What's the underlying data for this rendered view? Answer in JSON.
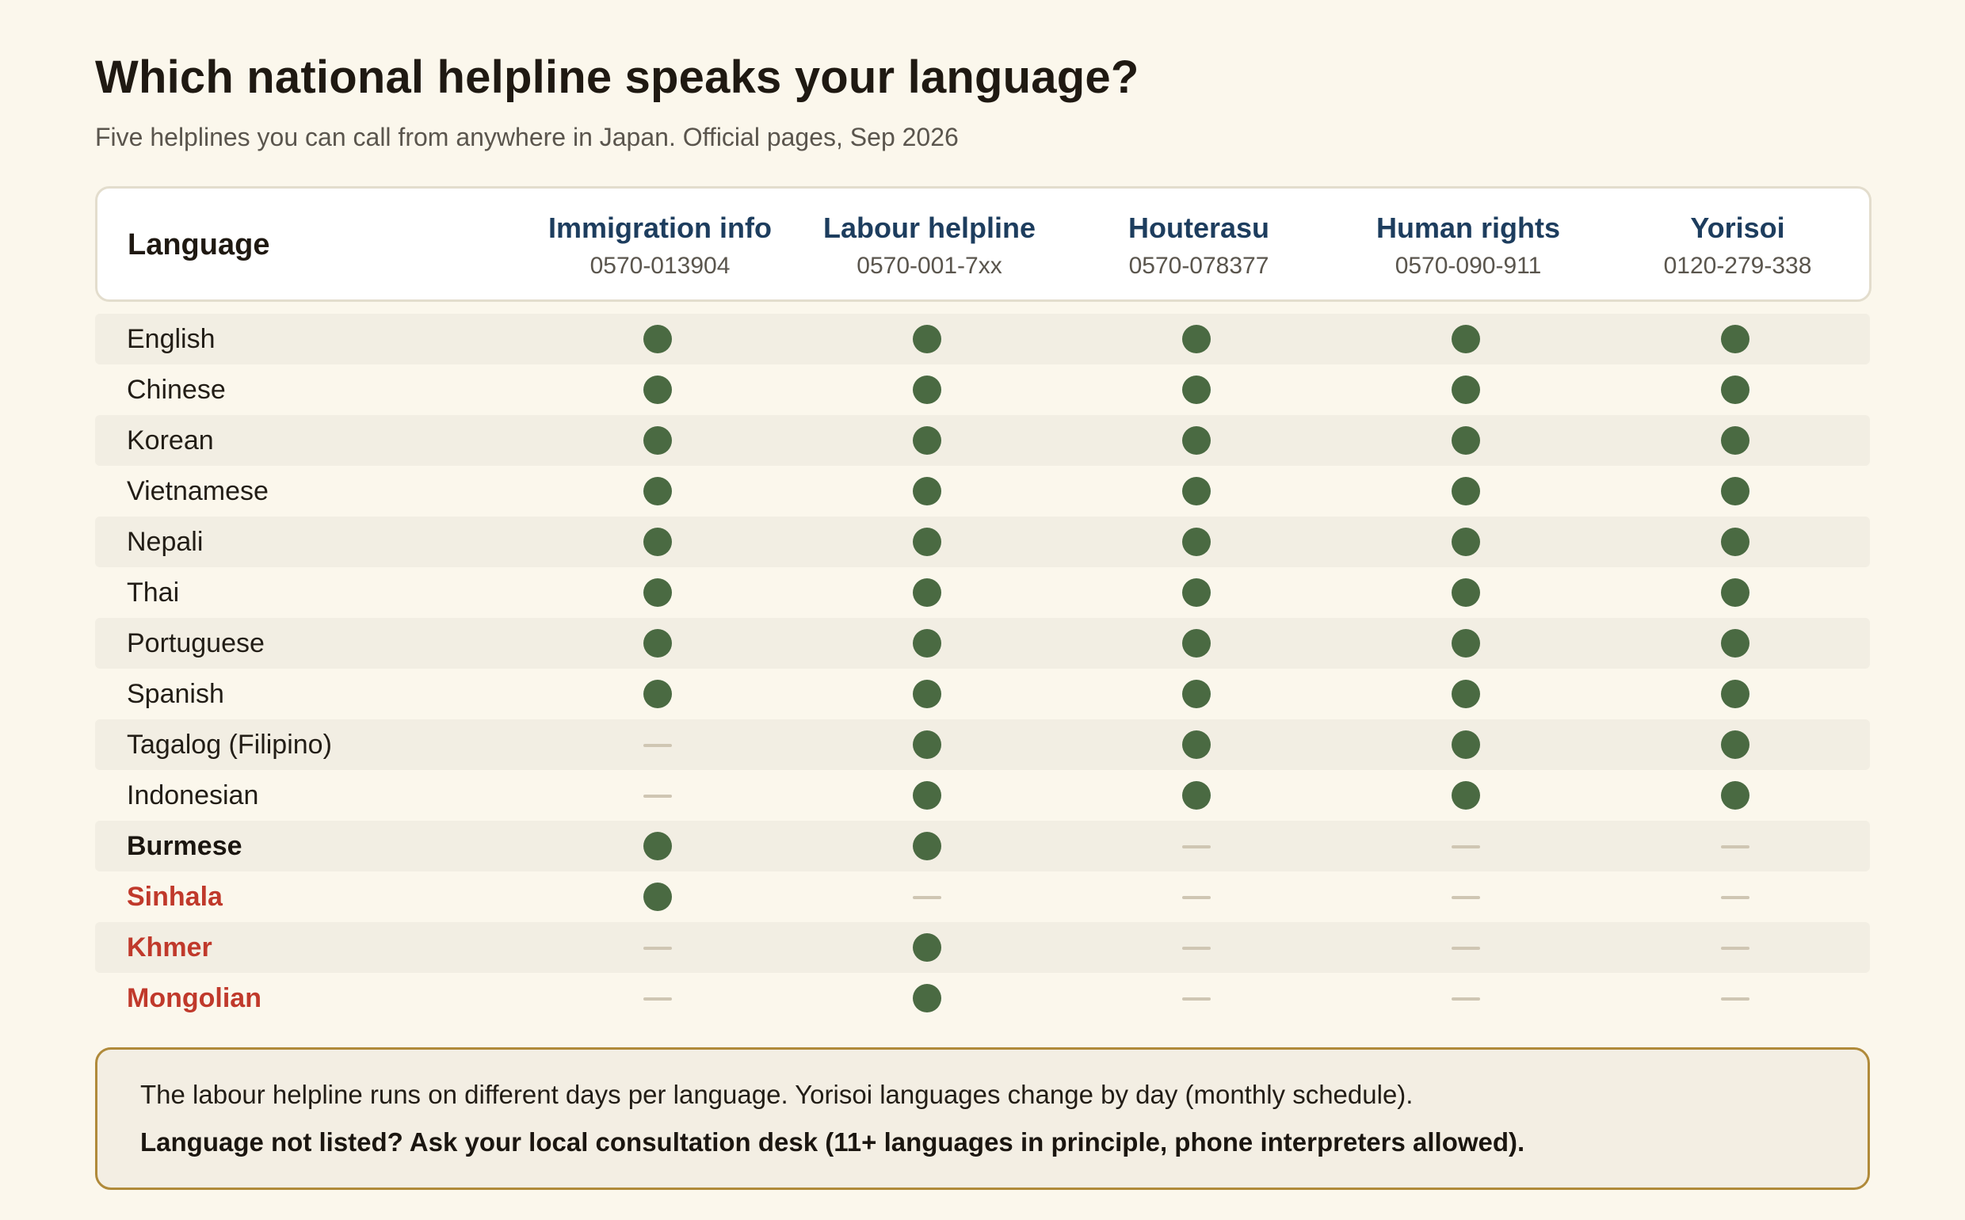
{
  "page": {
    "title": "Which national helpline speaks your language?",
    "subtitle": "Five helplines you can call from anywhere in Japan. Official pages, Sep 2026"
  },
  "table": {
    "language_header": "Language",
    "columns": [
      {
        "name": "Immigration info",
        "phone": "0570-013904"
      },
      {
        "name": "Labour helpline",
        "phone": "0570-001-7xx"
      },
      {
        "name": "Houterasu",
        "phone": "0570-078377"
      },
      {
        "name": "Human rights",
        "phone": "0570-090-911"
      },
      {
        "name": "Yorisoi",
        "phone": "0120-279-338"
      }
    ],
    "rows": [
      {
        "language": "English",
        "style": "normal",
        "available": [
          true,
          true,
          true,
          true,
          true
        ]
      },
      {
        "language": "Chinese",
        "style": "normal",
        "available": [
          true,
          true,
          true,
          true,
          true
        ]
      },
      {
        "language": "Korean",
        "style": "normal",
        "available": [
          true,
          true,
          true,
          true,
          true
        ]
      },
      {
        "language": "Vietnamese",
        "style": "normal",
        "available": [
          true,
          true,
          true,
          true,
          true
        ]
      },
      {
        "language": "Nepali",
        "style": "normal",
        "available": [
          true,
          true,
          true,
          true,
          true
        ]
      },
      {
        "language": "Thai",
        "style": "normal",
        "available": [
          true,
          true,
          true,
          true,
          true
        ]
      },
      {
        "language": "Portuguese",
        "style": "normal",
        "available": [
          true,
          true,
          true,
          true,
          true
        ]
      },
      {
        "language": "Spanish",
        "style": "normal",
        "available": [
          true,
          true,
          true,
          true,
          true
        ]
      },
      {
        "language": "Tagalog (Filipino)",
        "style": "normal",
        "available": [
          false,
          true,
          true,
          true,
          true
        ]
      },
      {
        "language": "Indonesian",
        "style": "normal",
        "available": [
          false,
          true,
          true,
          true,
          true
        ]
      },
      {
        "language": "Burmese",
        "style": "bold",
        "available": [
          true,
          true,
          false,
          false,
          false
        ]
      },
      {
        "language": "Sinhala",
        "style": "red",
        "available": [
          true,
          false,
          false,
          false,
          false
        ]
      },
      {
        "language": "Khmer",
        "style": "red",
        "available": [
          false,
          true,
          false,
          false,
          false
        ]
      },
      {
        "language": "Mongolian",
        "style": "red",
        "available": [
          false,
          true,
          false,
          false,
          false
        ]
      }
    ]
  },
  "note": {
    "line1": "The labour helpline runs on different days per language. Yorisoi languages change by day (monthly schedule).",
    "line2": "Language not listed? Ask your local consultation desk (11+ languages in principle, phone interpreters allowed)."
  },
  "colors": {
    "available_dot": "#4a6a42",
    "unavailable_dash": "#cfc6b3",
    "header_text": "#1d3d5e",
    "highlight_red": "#c0392b",
    "note_border": "#b08a3a",
    "background": "#fbf7ec"
  },
  "icons": {
    "available": "filled-circle-icon",
    "unavailable": "dash-icon"
  }
}
